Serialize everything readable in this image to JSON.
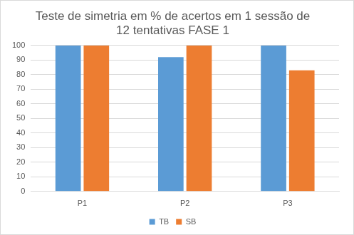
{
  "chart_data": {
    "type": "bar",
    "title": [
      "Teste de simetria em % de acertos em 1 sessão de",
      "12 tentativas FASE 1"
    ],
    "categories": [
      "P1",
      "P2",
      "P3"
    ],
    "series": [
      {
        "name": "TB",
        "color": "#5b9bd5",
        "values": [
          100,
          92,
          100
        ]
      },
      {
        "name": "SB",
        "color": "#ed7d31",
        "values": [
          100,
          100,
          83
        ]
      }
    ],
    "ylim": [
      0,
      100
    ],
    "yticks": [
      0,
      10,
      20,
      30,
      40,
      50,
      60,
      70,
      80,
      90,
      100
    ],
    "grid": true,
    "legend": "bottom"
  }
}
